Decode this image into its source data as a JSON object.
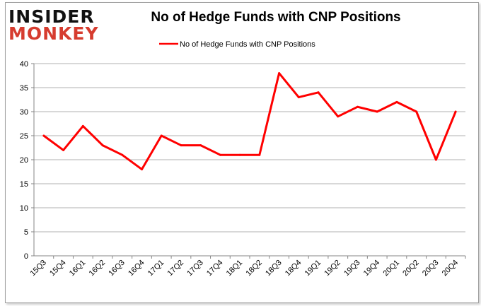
{
  "logo": {
    "line1": "INSIDER",
    "line2": "MONKEY"
  },
  "chart_data": {
    "type": "line",
    "title": "No of Hedge Funds with CNP Positions",
    "categories": [
      "15Q3",
      "15Q4",
      "16Q1",
      "16Q2",
      "16Q3",
      "16Q4",
      "17Q1",
      "17Q2",
      "17Q3",
      "17Q4",
      "18Q1",
      "18Q2",
      "18Q3",
      "18Q4",
      "19Q1",
      "19Q2",
      "19Q3",
      "19Q4",
      "20Q1",
      "20Q2",
      "20Q3",
      "20Q4"
    ],
    "series": [
      {
        "name": "No of Hedge Funds with CNP Positions",
        "color": "#ff0000",
        "values": [
          25,
          22,
          27,
          23,
          21,
          18,
          25,
          23,
          23,
          21,
          21,
          21,
          38,
          33,
          34,
          29,
          31,
          30,
          32,
          30,
          20,
          30
        ]
      }
    ],
    "ylim": [
      0,
      40
    ],
    "yticks": [
      0,
      5,
      10,
      15,
      20,
      25,
      30,
      35,
      40
    ],
    "grid": true,
    "legend": "top"
  }
}
